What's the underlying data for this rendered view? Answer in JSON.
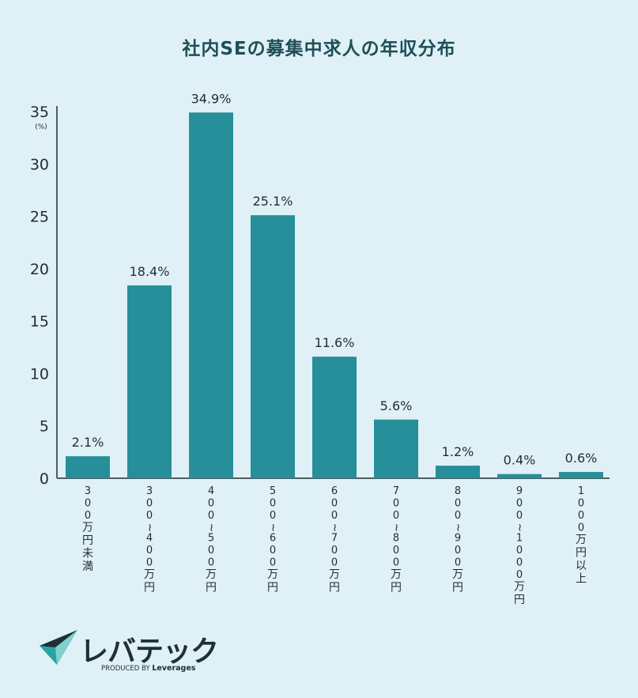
{
  "title": "社内SEの募集中求人の年収分布",
  "chart_data": {
    "type": "bar",
    "title": "社内SEの募集中求人の年収分布",
    "ylabel_unit": "(%)",
    "ylim": [
      0,
      35
    ],
    "yticks": [
      0,
      5,
      10,
      15,
      20,
      25,
      30,
      35
    ],
    "categories": [
      "300万円未満",
      "300~400万円",
      "400~500万円",
      "500~600万円",
      "600~700万円",
      "700~800万円",
      "800~900万円",
      "900~1000万円",
      "1000万円以上"
    ],
    "values": [
      2.1,
      18.4,
      34.9,
      25.1,
      11.6,
      5.6,
      1.2,
      0.4,
      0.6
    ],
    "data_labels": [
      "2.1%",
      "18.4%",
      "34.9%",
      "25.1%",
      "11.6%",
      "5.6%",
      "1.2%",
      "0.4%",
      "0.6%"
    ],
    "grid": false,
    "legend": "none",
    "bar_color": "#268f99",
    "background_color": "#dff1f6"
  },
  "logo": {
    "name": "レバテック",
    "produced_by": "PRODUCED BY",
    "brand": "Leverages"
  }
}
